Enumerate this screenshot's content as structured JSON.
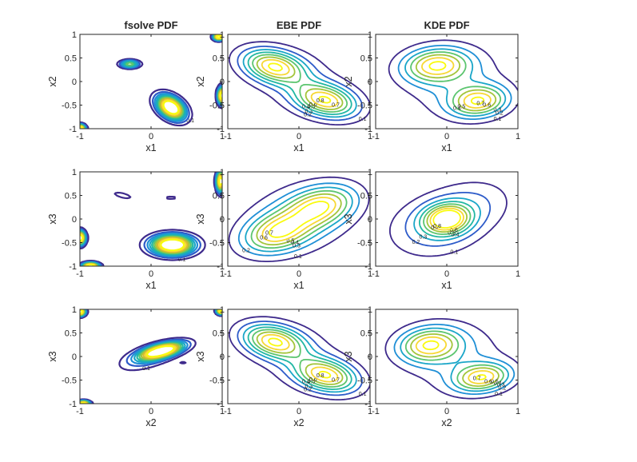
{
  "chart_data": [
    {
      "type": "contour",
      "title": "fsolve PDF",
      "xlabel": "x1",
      "ylabel": "x2",
      "xlim": [
        -1,
        1
      ],
      "ylim": [
        -1,
        1
      ],
      "xticks": [
        "-1",
        "0",
        "1"
      ],
      "yticks": [
        "-1",
        "-0.5",
        "0",
        "0.5",
        "1"
      ],
      "levels": [
        0.1,
        0.2,
        0.3,
        0.4,
        0.5,
        0.6,
        0.7,
        0.8,
        0.9,
        1
      ]
    },
    {
      "type": "contour",
      "title": "EBE PDF",
      "xlabel": "x1",
      "ylabel": "x2",
      "xlim": [
        -1,
        1
      ],
      "ylim": [
        -1,
        1
      ],
      "xticks": [
        "-1",
        "0",
        "1"
      ],
      "yticks": [
        "-1",
        "-0.5",
        "0",
        "0.5",
        "1"
      ],
      "levels": [
        0.1,
        0.2,
        0.3,
        0.4,
        0.5,
        0.6,
        0.7,
        0.8
      ]
    },
    {
      "type": "contour",
      "title": "KDE PDF",
      "xlabel": "x1",
      "ylabel": "x2",
      "xlim": [
        -1,
        1
      ],
      "ylim": [
        -1,
        1
      ],
      "xticks": [
        "-1",
        "0",
        "1"
      ],
      "yticks": [
        "-1",
        "-0.5",
        "0",
        "0.5",
        "1"
      ],
      "levels": [
        0.1,
        0.2,
        0.3,
        0.4,
        0.5,
        0.6,
        0.7
      ]
    },
    {
      "type": "contour",
      "title": "",
      "xlabel": "x1",
      "ylabel": "x3",
      "xlim": [
        -1,
        1
      ],
      "ylim": [
        -1,
        1
      ],
      "xticks": [
        "-1",
        "0",
        "1"
      ],
      "yticks": [
        "-1",
        "-0.5",
        "0",
        "0.5",
        "1"
      ],
      "levels": [
        0.1,
        0.2,
        0.3,
        0.4,
        0.5,
        0.6,
        0.7,
        0.8,
        0.9,
        1
      ]
    },
    {
      "type": "contour",
      "title": "",
      "xlabel": "x1",
      "ylabel": "x3",
      "xlim": [
        -1,
        1
      ],
      "ylim": [
        -1,
        1
      ],
      "xticks": [
        "-1",
        "0",
        "1"
      ],
      "yticks": [
        "-1",
        "-0.5",
        "0",
        "0.5",
        "1"
      ],
      "levels": [
        0.1,
        0.2,
        0.3,
        0.4,
        0.5,
        0.6,
        0.7
      ]
    },
    {
      "type": "contour",
      "title": "",
      "xlabel": "x1",
      "ylabel": "x3",
      "xlim": [
        -1,
        1
      ],
      "ylim": [
        -1,
        1
      ],
      "xticks": [
        "-1",
        "0",
        "1"
      ],
      "yticks": [
        "-1",
        "-0.5",
        "0",
        "0.5",
        "1"
      ],
      "levels": [
        0.1,
        0.2,
        0.3,
        0.4,
        0.5,
        0.6,
        0.7,
        0.8
      ]
    },
    {
      "type": "contour",
      "title": "",
      "xlabel": "x2",
      "ylabel": "x3",
      "xlim": [
        -1,
        1
      ],
      "ylim": [
        -1,
        1
      ],
      "xticks": [
        "-1",
        "0",
        "1"
      ],
      "yticks": [
        "-1",
        "-0.5",
        "0",
        "0.5",
        "1"
      ],
      "levels": [
        0.1,
        0.2,
        0.3,
        0.4,
        0.5,
        0.6,
        0.7,
        0.8,
        0.9,
        1
      ]
    },
    {
      "type": "contour",
      "title": "",
      "xlabel": "x2",
      "ylabel": "x3",
      "xlim": [
        -1,
        1
      ],
      "ylim": [
        -1,
        1
      ],
      "xticks": [
        "-1",
        "0",
        "1"
      ],
      "yticks": [
        "-1",
        "-0.5",
        "0",
        "0.5",
        "1"
      ],
      "levels": [
        0.1,
        0.2,
        0.3,
        0.4,
        0.5,
        0.6,
        0.7,
        0.8
      ]
    },
    {
      "type": "contour",
      "title": "",
      "xlabel": "x2",
      "ylabel": "x3",
      "xlim": [
        -1,
        1
      ],
      "ylim": [
        -1,
        1
      ],
      "xticks": [
        "-1",
        "0",
        "1"
      ],
      "yticks": [
        "-1",
        "-0.5",
        "0",
        "0.5",
        "1"
      ],
      "levels": [
        0.1,
        0.2,
        0.3,
        0.4,
        0.5,
        0.6,
        0.7
      ]
    }
  ],
  "colors": {
    "axis": "#262626",
    "background": "#ffffff",
    "contour_scale": [
      "#3e2a8c",
      "#2d5bc9",
      "#1f8fd6",
      "#1aa6c8",
      "#22b7a3",
      "#5cc56f",
      "#a3c53b",
      "#d8bb2e",
      "#f7d835",
      "#f9fb0e"
    ]
  }
}
